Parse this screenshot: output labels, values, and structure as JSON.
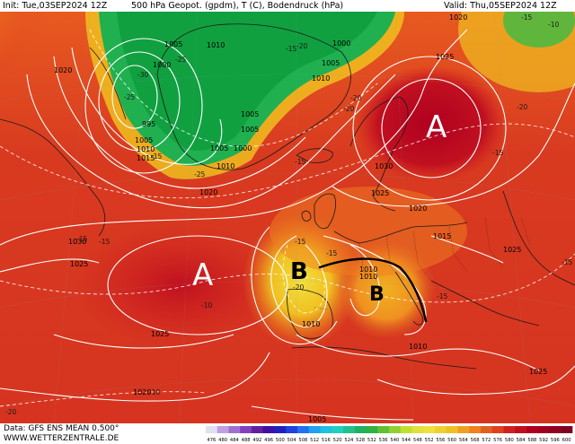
{
  "header": {
    "init": "Init: Tue,03SEP2024 12Z",
    "title": "500 hPa Geopot. (gpdm), T (C), Bodendruck (hPa)",
    "valid": "Valid: Thu,05SEP2024 12Z"
  },
  "footer": {
    "data_line": "Data: GFS ENS MEAN 0.500°",
    "site": "WWW.WETTERZENTRALE.DE"
  },
  "colors": {
    "low_geopotential": "#20b050",
    "mid_geopotential": "#f0c020",
    "high_geopotential": "#d02020",
    "isobar": "#ffffff",
    "annotation": "#000000"
  },
  "colorbar": {
    "ticks": [
      "476",
      "480",
      "484",
      "488",
      "492",
      "496",
      "500",
      "504",
      "508",
      "512",
      "516",
      "520",
      "524",
      "528",
      "532",
      "536",
      "540",
      "544",
      "548",
      "552",
      "556",
      "560",
      "564",
      "568",
      "572",
      "576",
      "580",
      "584",
      "588",
      "592",
      "596",
      "600"
    ],
    "colors": [
      "#e0e0f0",
      "#c0a0e0",
      "#a070d0",
      "#8040c0",
      "#6020a0",
      "#4010a0",
      "#2020c0",
      "#2040e0",
      "#2070f0",
      "#20a0f0",
      "#20c0e0",
      "#20d0c0",
      "#20c090",
      "#20b060",
      "#30b040",
      "#60c030",
      "#90d030",
      "#c0e030",
      "#e0e040",
      "#f0e040",
      "#f0d030",
      "#f0c020",
      "#f0a020",
      "#f08020",
      "#e06020",
      "#e04020",
      "#d02020",
      "#c01020",
      "#b00020",
      "#a00020",
      "#900020",
      "#800020"
    ]
  },
  "isobar_labels": [
    {
      "id": "1005-a",
      "text": "1005"
    },
    {
      "id": "1000-a",
      "text": "1000"
    },
    {
      "id": "995",
      "text": "995"
    },
    {
      "id": "1005-b",
      "text": "1005"
    },
    {
      "id": "1010-a",
      "text": "1010"
    },
    {
      "id": "1015-a",
      "text": "1015"
    },
    {
      "id": "1010-b",
      "text": "1010"
    },
    {
      "id": "1000-b",
      "text": "1000"
    },
    {
      "id": "1005-c",
      "text": "1005"
    },
    {
      "id": "1010-c",
      "text": "1010"
    },
    {
      "id": "1005-d",
      "text": "1005"
    },
    {
      "id": "1005-e",
      "text": "1005"
    },
    {
      "id": "1000-c",
      "text": "1000"
    },
    {
      "id": "1005-f",
      "text": "1005"
    },
    {
      "id": "1010-d",
      "text": "1010"
    },
    {
      "id": "1020-a",
      "text": "1020"
    },
    {
      "id": "1020-b",
      "text": "1020"
    },
    {
      "id": "1025-a",
      "text": "1025"
    },
    {
      "id": "1020-c",
      "text": "1020"
    },
    {
      "id": "1030-a",
      "text": "1030"
    },
    {
      "id": "1025-b",
      "text": "1025"
    },
    {
      "id": "1020-d",
      "text": "1020"
    },
    {
      "id": "1015-b",
      "text": "1015"
    },
    {
      "id": "1030-b",
      "text": "1030"
    },
    {
      "id": "1025-c",
      "text": "1025"
    },
    {
      "id": "1025-d",
      "text": "1025"
    },
    {
      "id": "1010-e",
      "text": "1010"
    },
    {
      "id": "1010-f",
      "text": "1010"
    },
    {
      "id": "1010-g",
      "text": "1010"
    },
    {
      "id": "1010-h",
      "text": "1010"
    },
    {
      "id": "1020-e",
      "text": "1020"
    },
    {
      "id": "1025-e",
      "text": "1025"
    },
    {
      "id": "1005-g",
      "text": "1005"
    },
    {
      "id": "1025-f",
      "text": "1025"
    }
  ],
  "temperature_labels": [
    {
      "id": "t1",
      "text": "-25"
    },
    {
      "id": "t2",
      "text": "-30"
    },
    {
      "id": "t3",
      "text": "-25"
    },
    {
      "id": "t4",
      "text": "-20"
    },
    {
      "id": "t5",
      "text": "-20"
    },
    {
      "id": "t6",
      "text": "-25"
    },
    {
      "id": "t7",
      "text": "-15"
    },
    {
      "id": "t8",
      "text": "-20"
    },
    {
      "id": "t9",
      "text": "-15"
    },
    {
      "id": "t10",
      "text": "-20"
    },
    {
      "id": "t11",
      "text": "-15"
    },
    {
      "id": "t12",
      "text": "-15"
    },
    {
      "id": "t13",
      "text": "-15"
    },
    {
      "id": "t14",
      "text": "-15"
    },
    {
      "id": "t15",
      "text": "-20"
    },
    {
      "id": "t16",
      "text": "-15"
    },
    {
      "id": "t17",
      "text": "-10"
    },
    {
      "id": "t18",
      "text": "-10"
    },
    {
      "id": "t19",
      "text": "-15"
    },
    {
      "id": "t20",
      "text": "-20"
    },
    {
      "id": "t21",
      "text": "-15"
    },
    {
      "id": "t22",
      "text": "-10"
    },
    {
      "id": "t23",
      "text": "-15"
    },
    {
      "id": "t24",
      "text": "-15"
    }
  ],
  "annotations": {
    "high_north": "A",
    "high_atlantic": "A",
    "low_iberia": "B",
    "low_france": "B"
  }
}
